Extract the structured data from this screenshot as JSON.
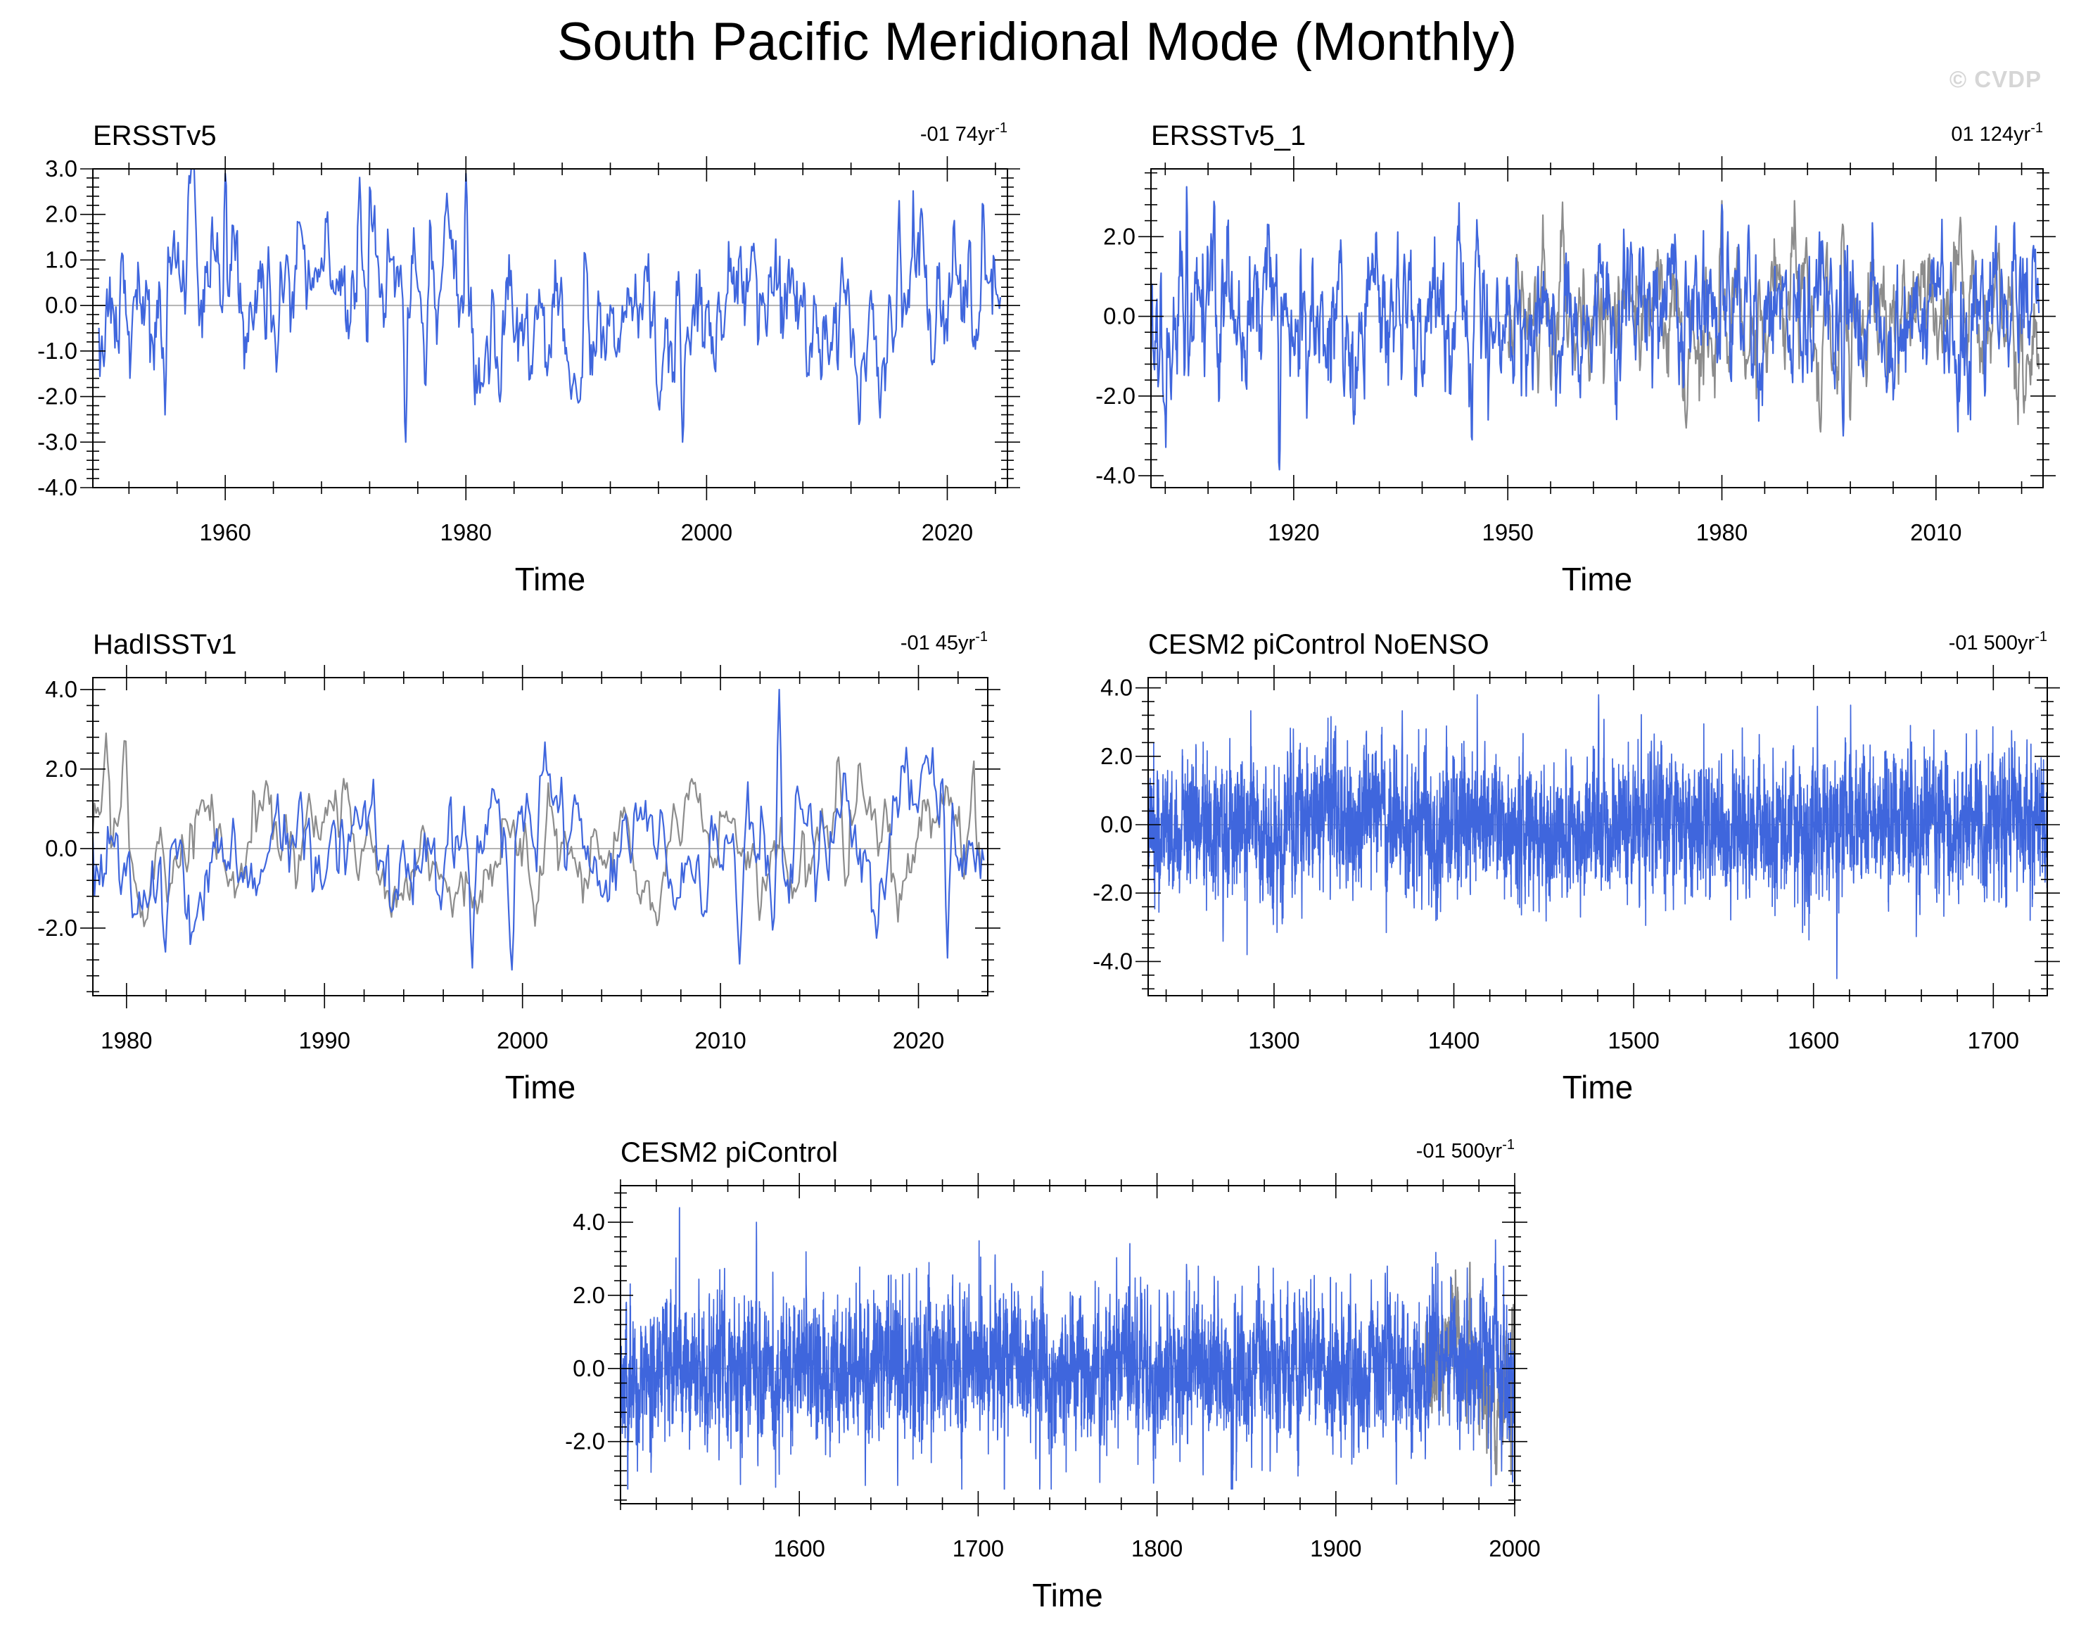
{
  "title": "South Pacific Meridional Mode (Monthly)",
  "watermark": "© CVDP",
  "colors": {
    "series": "#3f66dd",
    "reference": "#8c8c8c",
    "axis": "#000000",
    "zero_line": "#b3b3b3"
  },
  "chart_data": [
    {
      "type": "line",
      "title": "ERSSTv5",
      "trend_label": "-01 74yr",
      "trend_superscript": "-1",
      "xlabel": "Time",
      "ylabel": "",
      "xlim": [
        1949,
        2025
      ],
      "ylim": [
        -4,
        3
      ],
      "xticks": [
        1960,
        1980,
        2000,
        2020
      ],
      "xtick_labels": [
        "1960",
        "1980",
        "2000",
        "2020"
      ],
      "yticks": [
        3,
        2,
        1,
        0,
        -1,
        -2,
        -3,
        -4
      ],
      "ytick_labels": [
        "3.0",
        "2.0",
        "1.0",
        "0.0",
        "-1.0",
        "-2.0",
        "-3.0",
        "-4.0"
      ],
      "grid": false,
      "series": [
        {
          "role": "main",
          "start": 1949.5,
          "end": 2024.5,
          "seed": 11,
          "ampStd": 0.95,
          "extent": [
            -3.0,
            3.0
          ],
          "phi": 0.82,
          "wander": 0.45,
          "events": [
            [
              1957,
              2.85
            ],
            [
              1960,
              2.9
            ],
            [
              1975,
              -3.0
            ],
            [
              1980,
              2.9
            ],
            [
              1998,
              -3.05
            ],
            [
              2016,
              2.3
            ],
            [
              2023,
              2.2
            ],
            [
              1955,
              -2.4
            ]
          ]
        }
      ]
    },
    {
      "type": "line",
      "title": "ERSSTv5_1",
      "trend_label": "01 124yr",
      "trend_superscript": "-1",
      "xlabel": "Time",
      "ylabel": "",
      "xlim": [
        1900,
        2025
      ],
      "ylim": [
        -4.3,
        3.7
      ],
      "xticks": [
        1920,
        1950,
        1980,
        2010
      ],
      "xtick_labels": [
        "1920",
        "1950",
        "1980",
        "2010"
      ],
      "yticks": [
        2,
        0,
        -2,
        -4
      ],
      "ytick_labels": [
        "2.0",
        "0.0",
        "-2.0",
        "-4.0"
      ],
      "grid": false,
      "series": [
        {
          "role": "reference",
          "start": 1950,
          "end": 2024.5,
          "seed": 21,
          "ampStd": 0.95,
          "extent": [
            -2.9,
            2.9
          ],
          "phi": 0.82,
          "wander": 0.45,
          "events": [
            [
              1980,
              2.9
            ],
            [
              1975,
              -2.8
            ],
            [
              1998,
              -2.6
            ]
          ]
        },
        {
          "role": "main",
          "start": 1900,
          "end": 2024.5,
          "seed": 22,
          "ampStd": 1.0,
          "extent": [
            -3.85,
            3.3
          ],
          "phi": 0.7,
          "wander": 0.35,
          "events": [
            [
              1905,
              3.25
            ],
            [
              1902,
              -2.5
            ],
            [
              1918,
              -3.85
            ],
            [
              1945,
              -3.1
            ],
            [
              1980,
              2.8
            ],
            [
              1997,
              -3.0
            ]
          ]
        }
      ]
    },
    {
      "type": "line",
      "title": "HadISSTv1",
      "trend_label": "-01 45yr",
      "trend_superscript": "-1",
      "xlabel": "Time",
      "ylabel": "",
      "xlim": [
        1978.3,
        2023.5
      ],
      "ylim": [
        -3.7,
        4.3
      ],
      "xticks": [
        1980,
        1990,
        2000,
        2010,
        2020
      ],
      "xtick_labels": [
        "1980",
        "1990",
        "2000",
        "2010",
        "2020"
      ],
      "yticks": [
        4,
        2,
        0,
        -2
      ],
      "ytick_labels": [
        "4.0",
        "2.0",
        "0.0",
        "-2.0"
      ],
      "grid": false,
      "series": [
        {
          "role": "reference",
          "start": 1978.3,
          "end": 2023.4,
          "seed": 31,
          "ampStd": 0.85,
          "extent": [
            -2.4,
            2.9
          ],
          "phi": 0.85,
          "wander": 0.4,
          "events": [
            [
              1979,
              2.9
            ],
            [
              1980,
              2.7
            ],
            [
              2016,
              2.3
            ],
            [
              2022.8,
              2.2
            ]
          ]
        },
        {
          "role": "main",
          "start": 1978.3,
          "end": 2023.4,
          "seed": 32,
          "ampStd": 0.95,
          "extent": [
            -3.05,
            4.0
          ],
          "phi": 0.82,
          "wander": 0.4,
          "events": [
            [
              2013,
              4.0
            ],
            [
              1997.5,
              -3.0
            ],
            [
              1999.5,
              -3.05
            ],
            [
              1982,
              -2.6
            ],
            [
              2011,
              -2.9
            ],
            [
              2021.5,
              -2.75
            ]
          ]
        }
      ]
    },
    {
      "type": "line",
      "title": "CESM2 piControl NoENSO",
      "trend_label": "-01 500yr",
      "trend_superscript": "-1",
      "xlabel": "Time",
      "ylabel": "",
      "xlim": [
        1230,
        1730
      ],
      "ylim": [
        -5,
        4.3
      ],
      "xticks": [
        1300,
        1400,
        1500,
        1600,
        1700
      ],
      "xtick_labels": [
        "1300",
        "1400",
        "1500",
        "1600",
        "1700"
      ],
      "yticks": [
        4,
        2,
        0,
        -2,
        -4
      ],
      "ytick_labels": [
        "4.0",
        "2.0",
        "0.0",
        "-2.0",
        "-4.0"
      ],
      "grid": false,
      "series": [
        {
          "role": "main",
          "start": 1230,
          "end": 1729.9,
          "seed": 41,
          "ampStd": 1.0,
          "extent": [
            -4.5,
            3.8
          ],
          "phi": 0.55,
          "wander": 0.2,
          "events": [
            [
              1613,
              -4.5
            ],
            [
              1413,
              3.8
            ],
            [
              1285,
              -3.8
            ]
          ]
        }
      ]
    },
    {
      "type": "line",
      "title": "CESM2 piControl",
      "trend_label": "-01 500yr",
      "trend_superscript": "-1",
      "xlabel": "Time",
      "ylabel": "",
      "xlim": [
        1500,
        2000
      ],
      "ylim": [
        -3.7,
        5.0
      ],
      "xticks": [
        1600,
        1700,
        1800,
        1900,
        2000
      ],
      "xtick_labels": [
        "1600",
        "1700",
        "1800",
        "1900",
        "2000"
      ],
      "yticks": [
        4,
        2,
        0,
        -2
      ],
      "ytick_labels": [
        "4.0",
        "2.0",
        "0.0",
        "-2.0"
      ],
      "grid": false,
      "series": [
        {
          "role": "reference",
          "start": 1950,
          "end": 1999.5,
          "seed": 51,
          "ampStd": 0.95,
          "extent": [
            -2.9,
            2.9
          ],
          "phi": 0.82,
          "wander": 0.45,
          "events": [
            [
              1975,
              2.9
            ],
            [
              1998,
              -3.0
            ],
            [
              1967,
              2.5
            ]
          ]
        },
        {
          "role": "main",
          "start": 1500,
          "end": 1999.9,
          "seed": 52,
          "ampStd": 1.0,
          "extent": [
            -3.3,
            4.4
          ],
          "phi": 0.6,
          "wander": 0.2,
          "events": [
            [
              1533,
              4.4
            ],
            [
              1576,
              4.0
            ],
            [
              1504,
              -3.3
            ],
            [
              1655,
              -3.2
            ]
          ]
        }
      ]
    }
  ]
}
